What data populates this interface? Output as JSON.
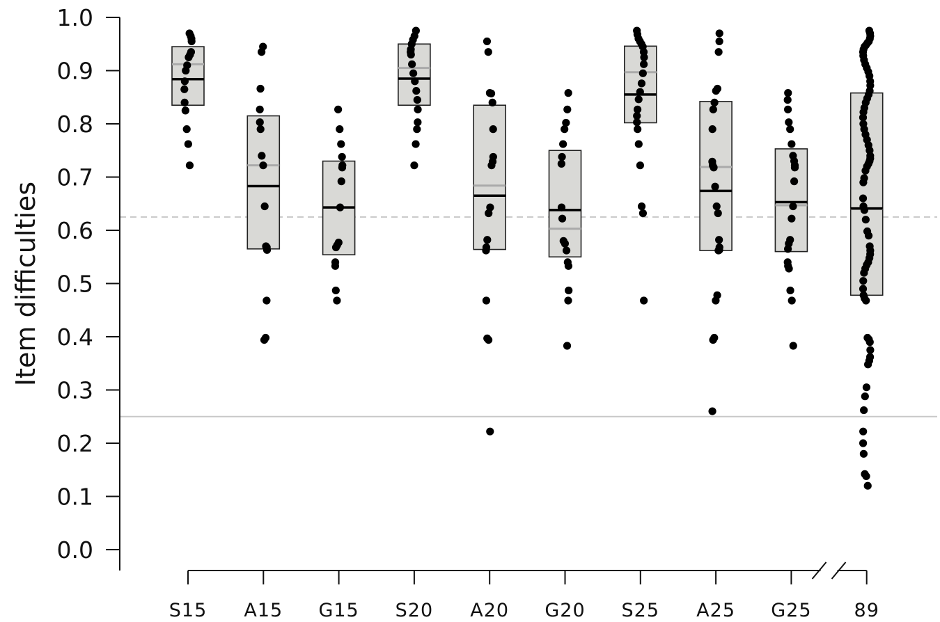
{
  "chart_data": {
    "type": "boxplot-strip",
    "title": "",
    "xlabel": "",
    "ylabel": "Item difficulties",
    "ylim": [
      0,
      1
    ],
    "yticks": [
      "0.0",
      "0.1",
      "0.2",
      "0.3",
      "0.4",
      "0.5",
      "0.6",
      "0.7",
      "0.8",
      "0.9",
      "1.0"
    ],
    "grid": false,
    "axis_break": "between G25 and 89",
    "reference_lines": [
      {
        "value": 0.625,
        "style": "dashed",
        "color": "#c8c8c8"
      },
      {
        "value": 0.25,
        "style": "solid",
        "color": "#c8c8c8"
      }
    ],
    "colors": {
      "box_fill": "#d9d9d6",
      "box_stroke": "#222222",
      "median": "#000000",
      "mean": "#aaaaaa",
      "points": "#000000"
    },
    "categories": [
      "S15",
      "A15",
      "G15",
      "S20",
      "A20",
      "G20",
      "S25",
      "A25",
      "G25",
      "89"
    ],
    "boxes": [
      {
        "category": "S15",
        "q1": 0.835,
        "median": 0.884,
        "q3": 0.945,
        "mean": 0.912
      },
      {
        "category": "A15",
        "q1": 0.565,
        "median": 0.683,
        "q3": 0.815,
        "mean": 0.722
      },
      {
        "category": "G15",
        "q1": 0.554,
        "median": 0.643,
        "q3": 0.73,
        "mean": 0.643
      },
      {
        "category": "S20",
        "q1": 0.835,
        "median": 0.885,
        "q3": 0.95,
        "mean": 0.905
      },
      {
        "category": "A20",
        "q1": 0.564,
        "median": 0.665,
        "q3": 0.835,
        "mean": 0.684
      },
      {
        "category": "G20",
        "q1": 0.55,
        "median": 0.638,
        "q3": 0.75,
        "mean": 0.603
      },
      {
        "category": "S25",
        "q1": 0.802,
        "median": 0.855,
        "q3": 0.946,
        "mean": 0.897
      },
      {
        "category": "A25",
        "q1": 0.562,
        "median": 0.674,
        "q3": 0.842,
        "mean": 0.719
      },
      {
        "category": "G25",
        "q1": 0.56,
        "median": 0.653,
        "q3": 0.753,
        "mean": 0.647
      },
      {
        "category": "89",
        "q1": 0.478,
        "median": 0.641,
        "q3": 0.858,
        "mean": 0.64
      }
    ],
    "points": [
      {
        "category": "S15",
        "values": [
          0.97,
          0.965,
          0.96,
          0.955,
          0.935,
          0.93,
          0.925,
          0.91,
          0.9,
          0.88,
          0.865,
          0.84,
          0.825,
          0.79,
          0.762,
          0.722
        ]
      },
      {
        "category": "A15",
        "values": [
          0.945,
          0.935,
          0.866,
          0.827,
          0.803,
          0.79,
          0.74,
          0.722,
          0.645,
          0.57,
          0.568,
          0.563,
          0.468,
          0.398,
          0.394
        ]
      },
      {
        "category": "G15",
        "values": [
          0.827,
          0.79,
          0.762,
          0.738,
          0.722,
          0.718,
          0.692,
          0.643,
          0.577,
          0.572,
          0.568,
          0.54,
          0.533,
          0.487,
          0.468
        ]
      },
      {
        "category": "S20",
        "values": [
          0.975,
          0.965,
          0.958,
          0.95,
          0.94,
          0.935,
          0.93,
          0.912,
          0.895,
          0.88,
          0.862,
          0.845,
          0.827,
          0.803,
          0.79,
          0.762,
          0.722
        ]
      },
      {
        "category": "A20",
        "values": [
          0.955,
          0.935,
          0.858,
          0.857,
          0.84,
          0.79,
          0.738,
          0.729,
          0.722,
          0.643,
          0.632,
          0.582,
          0.568,
          0.562,
          0.468,
          0.397,
          0.394,
          0.222
        ]
      },
      {
        "category": "G20",
        "values": [
          0.858,
          0.827,
          0.802,
          0.79,
          0.762,
          0.738,
          0.725,
          0.643,
          0.622,
          0.58,
          0.575,
          0.562,
          0.54,
          0.533,
          0.487,
          0.468,
          0.383
        ]
      },
      {
        "category": "S25",
        "values": [
          0.975,
          0.968,
          0.96,
          0.955,
          0.95,
          0.945,
          0.935,
          0.925,
          0.912,
          0.895,
          0.876,
          0.86,
          0.846,
          0.827,
          0.815,
          0.803,
          0.79,
          0.762,
          0.722,
          0.645,
          0.632,
          0.468
        ]
      },
      {
        "category": "A25",
        "values": [
          0.97,
          0.955,
          0.935,
          0.866,
          0.862,
          0.84,
          0.827,
          0.79,
          0.729,
          0.722,
          0.718,
          0.682,
          0.645,
          0.632,
          0.582,
          0.568,
          0.563,
          0.562,
          0.478,
          0.468,
          0.398,
          0.394,
          0.26
        ]
      },
      {
        "category": "G25",
        "values": [
          0.858,
          0.845,
          0.827,
          0.803,
          0.79,
          0.762,
          0.74,
          0.73,
          0.722,
          0.718,
          0.692,
          0.645,
          0.622,
          0.582,
          0.575,
          0.565,
          0.54,
          0.533,
          0.528,
          0.487,
          0.468,
          0.383
        ]
      },
      {
        "category": "89",
        "values": [
          0.975,
          0.97,
          0.965,
          0.96,
          0.955,
          0.952,
          0.948,
          0.945,
          0.94,
          0.935,
          0.928,
          0.92,
          0.912,
          0.905,
          0.898,
          0.89,
          0.88,
          0.872,
          0.862,
          0.855,
          0.848,
          0.84,
          0.83,
          0.822,
          0.812,
          0.8,
          0.79,
          0.78,
          0.77,
          0.76,
          0.75,
          0.74,
          0.735,
          0.73,
          0.725,
          0.72,
          0.712,
          0.698,
          0.69,
          0.66,
          0.645,
          0.638,
          0.62,
          0.598,
          0.59,
          0.57,
          0.562,
          0.555,
          0.548,
          0.54,
          0.535,
          0.528,
          0.52,
          0.505,
          0.49,
          0.478,
          0.472,
          0.468,
          0.398,
          0.395,
          0.39,
          0.375,
          0.362,
          0.355,
          0.348,
          0.305,
          0.288,
          0.262,
          0.222,
          0.2,
          0.18,
          0.142,
          0.138,
          0.12
        ]
      }
    ]
  }
}
